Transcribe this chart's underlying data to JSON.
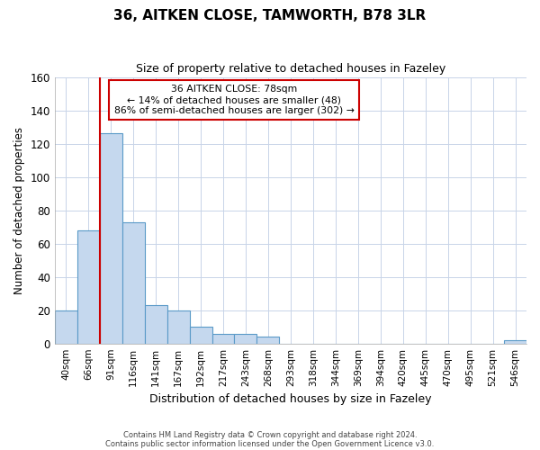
{
  "title_line1": "36, AITKEN CLOSE, TAMWORTH, B78 3LR",
  "title_line2": "Size of property relative to detached houses in Fazeley",
  "xlabel": "Distribution of detached houses by size in Fazeley",
  "ylabel": "Number of detached properties",
  "bin_labels": [
    "40sqm",
    "66sqm",
    "91sqm",
    "116sqm",
    "141sqm",
    "167sqm",
    "192sqm",
    "217sqm",
    "243sqm",
    "268sqm",
    "293sqm",
    "318sqm",
    "344sqm",
    "369sqm",
    "394sqm",
    "420sqm",
    "445sqm",
    "470sqm",
    "495sqm",
    "521sqm",
    "546sqm"
  ],
  "bar_heights": [
    20,
    68,
    126,
    73,
    23,
    20,
    10,
    6,
    6,
    4,
    0,
    0,
    0,
    0,
    0,
    0,
    0,
    0,
    0,
    0,
    2
  ],
  "bar_color": "#c5d8ee",
  "bar_edge_color": "#5a9ac8",
  "ylim": [
    0,
    160
  ],
  "yticks": [
    0,
    20,
    40,
    60,
    80,
    100,
    120,
    140,
    160
  ],
  "property_line_color": "#cc0000",
  "annotation_title": "36 AITKEN CLOSE: 78sqm",
  "annotation_line1": "← 14% of detached houses are smaller (48)",
  "annotation_line2": "86% of semi-detached houses are larger (302) →",
  "annotation_box_color": "#cc0000",
  "footer_line1": "Contains HM Land Registry data © Crown copyright and database right 2024.",
  "footer_line2": "Contains public sector information licensed under the Open Government Licence v3.0.",
  "background_color": "#ffffff",
  "grid_color": "#c8d4e8"
}
